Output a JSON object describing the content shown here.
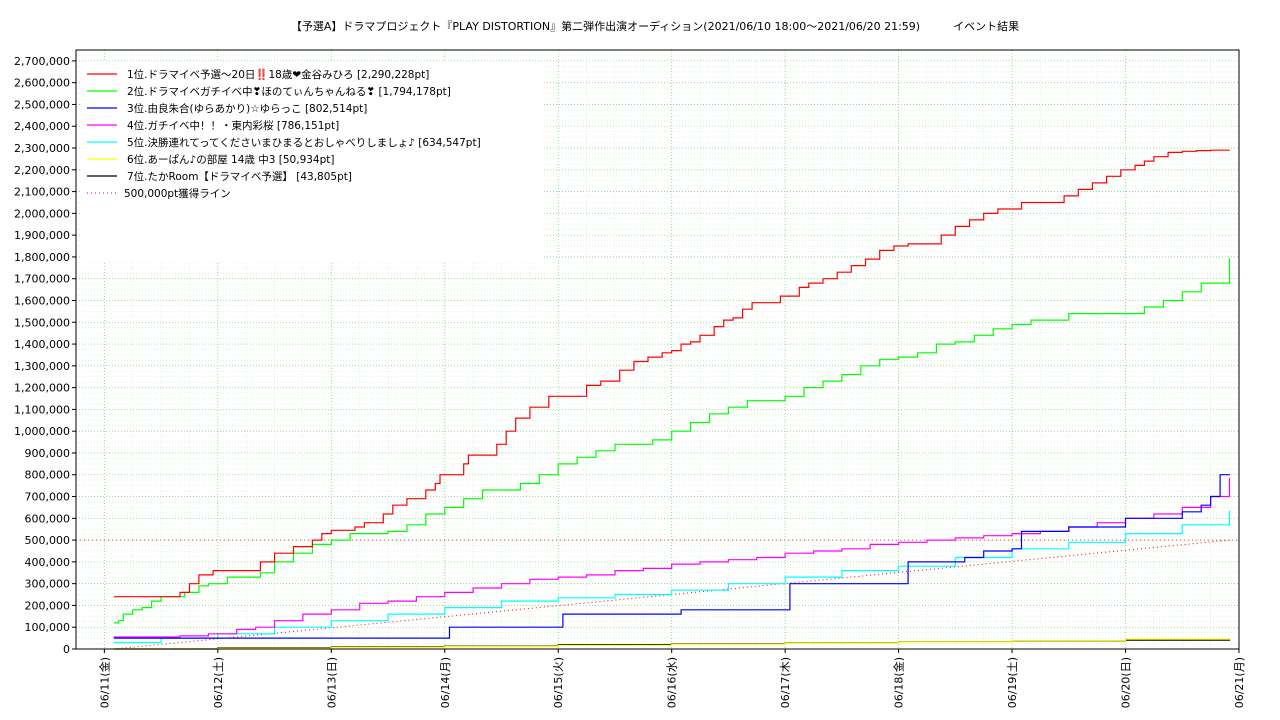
{
  "chart_data": {
    "type": "line",
    "title": "【予選A】ドラマプロジェクト『PLAY DISTORTION』第二弾作出演オーディション(2021/06/10 18:00〜2021/06/20 21:59)　　　イベント結果",
    "xlabel": "",
    "ylabel": "",
    "ylim": [
      0,
      2750000
    ],
    "yticks": [
      0,
      100000,
      200000,
      300000,
      400000,
      500000,
      600000,
      700000,
      800000,
      900000,
      1000000,
      1100000,
      1200000,
      1300000,
      1400000,
      1500000,
      1600000,
      1700000,
      1800000,
      1900000,
      2000000,
      2100000,
      2200000,
      2300000,
      2400000,
      2500000,
      2600000,
      2700000
    ],
    "ytick_labels": [
      "0",
      "100,000",
      "200,000",
      "300,000",
      "400,000",
      "500,000",
      "600,000",
      "700,000",
      "800,000",
      "900,000",
      "1,000,000",
      "1,100,000",
      "1,200,000",
      "1,300,000",
      "1,400,000",
      "1,500,000",
      "1,600,000",
      "1,700,000",
      "1,800,000",
      "1,900,000",
      "2,000,000",
      "2,100,000",
      "2,200,000",
      "2,300,000",
      "2,400,000",
      "2,500,000",
      "2,600,000",
      "2,700,000"
    ],
    "xlim": [
      "2021-06-10 18:00",
      "2021-06-21 00:00"
    ],
    "xticks": [
      "2021-06-11 00:00",
      "2021-06-12 00:00",
      "2021-06-13 00:00",
      "2021-06-14 00:00",
      "2021-06-15 00:00",
      "2021-06-16 00:00",
      "2021-06-17 00:00",
      "2021-06-18 00:00",
      "2021-06-19 00:00",
      "2021-06-20 00:00",
      "2021-06-21 00:00"
    ],
    "xtick_labels": [
      "06/11(金)",
      "06/12(土)",
      "06/13(日)",
      "06/14(月)",
      "06/15(火)",
      "06/16(水)",
      "06/17(木)",
      "06/18(金)",
      "06/19(土)",
      "06/20(日)",
      "06/21(月)"
    ],
    "grid": true,
    "legend_position": "top-left",
    "series": [
      {
        "name": "1位.ドラマイベ予選〜20日‼️18歳❤金谷みひろ [2,290,228pt]",
        "color": "#ff0000",
        "x": [
          "2021-06-11 02:00",
          "2021-06-11 07:00",
          "2021-06-11 08:00",
          "2021-06-11 09:00",
          "2021-06-11 11:00",
          "2021-06-11 14:00",
          "2021-06-11 16:00",
          "2021-06-11 18:00",
          "2021-06-11 20:00",
          "2021-06-11 23:00",
          "2021-06-12 03:00",
          "2021-06-12 06:00",
          "2021-06-12 09:00",
          "2021-06-12 12:00",
          "2021-06-12 16:00",
          "2021-06-12 20:00",
          "2021-06-12 22:00",
          "2021-06-13 00:00",
          "2021-06-13 05:00",
          "2021-06-13 07:00",
          "2021-06-13 09:00",
          "2021-06-13 11:00",
          "2021-06-13 13:00",
          "2021-06-13 16:00",
          "2021-06-13 20:00",
          "2021-06-13 22:00",
          "2021-06-13 23:00",
          "2021-06-14 04:00",
          "2021-06-14 05:00",
          "2021-06-14 06:00",
          "2021-06-14 09:00",
          "2021-06-14 11:00",
          "2021-06-14 13:00",
          "2021-06-14 15:00",
          "2021-06-14 18:00",
          "2021-06-14 22:00",
          "2021-06-15 02:00",
          "2021-06-15 04:00",
          "2021-06-15 06:00",
          "2021-06-15 09:00",
          "2021-06-15 11:00",
          "2021-06-15 13:00",
          "2021-06-15 16:00",
          "2021-06-15 19:00",
          "2021-06-15 22:00",
          "2021-06-16 00:00",
          "2021-06-16 02:00",
          "2021-06-16 04:00",
          "2021-06-16 06:00",
          "2021-06-16 09:00",
          "2021-06-16 11:00",
          "2021-06-16 13:00",
          "2021-06-16 15:00",
          "2021-06-16 17:00",
          "2021-06-16 20:00",
          "2021-06-16 23:00",
          "2021-06-17 03:00",
          "2021-06-17 05:00",
          "2021-06-17 08:00",
          "2021-06-17 11:00",
          "2021-06-17 14:00",
          "2021-06-17 17:00",
          "2021-06-17 20:00",
          "2021-06-17 23:00",
          "2021-06-18 02:00",
          "2021-06-18 06:00",
          "2021-06-18 09:00",
          "2021-06-18 12:00",
          "2021-06-18 15:00",
          "2021-06-18 18:00",
          "2021-06-18 21:00",
          "2021-06-19 02:00",
          "2021-06-19 05:00",
          "2021-06-19 08:00",
          "2021-06-19 11:00",
          "2021-06-19 14:00",
          "2021-06-19 17:00",
          "2021-06-19 20:00",
          "2021-06-19 23:00",
          "2021-06-20 02:00",
          "2021-06-20 04:00",
          "2021-06-20 06:00",
          "2021-06-20 09:00",
          "2021-06-20 12:00",
          "2021-06-20 15:00",
          "2021-06-20 18:00",
          "2021-06-20 21:59"
        ],
        "y": [
          240000,
          240000,
          240000,
          240000,
          240000,
          240000,
          260000,
          300000,
          340000,
          360000,
          360000,
          360000,
          400000,
          440000,
          470000,
          500000,
          530000,
          545000,
          560000,
          580000,
          580000,
          620000,
          660000,
          690000,
          730000,
          760000,
          800000,
          850000,
          890000,
          890000,
          890000,
          940000,
          1000000,
          1060000,
          1110000,
          1160000,
          1160000,
          1160000,
          1210000,
          1230000,
          1230000,
          1280000,
          1320000,
          1340000,
          1360000,
          1370000,
          1400000,
          1410000,
          1440000,
          1480000,
          1510000,
          1520000,
          1560000,
          1590000,
          1590000,
          1620000,
          1660000,
          1680000,
          1700000,
          1730000,
          1760000,
          1790000,
          1830000,
          1850000,
          1860000,
          1860000,
          1900000,
          1940000,
          1970000,
          2000000,
          2020000,
          2050000,
          2050000,
          2050000,
          2080000,
          2110000,
          2140000,
          2170000,
          2200000,
          2220000,
          2240000,
          2260000,
          2280000,
          2285000,
          2288000,
          2290000,
          2290228
        ]
      },
      {
        "name": "2位.ドラマイベガチイベ中❣ほのてぃんちゃんねる❣ [1,794,178pt]",
        "color": "#00ff00",
        "x": [
          "2021-06-11 02:00",
          "2021-06-11 03:00",
          "2021-06-11 04:00",
          "2021-06-11 06:00",
          "2021-06-11 08:00",
          "2021-06-11 10:00",
          "2021-06-11 12:00",
          "2021-06-11 15:00",
          "2021-06-11 17:00",
          "2021-06-11 20:00",
          "2021-06-11 22:00",
          "2021-06-12 02:00",
          "2021-06-12 06:00",
          "2021-06-12 09:00",
          "2021-06-12 12:00",
          "2021-06-12 16:00",
          "2021-06-12 20:00",
          "2021-06-13 00:00",
          "2021-06-13 04:00",
          "2021-06-13 08:00",
          "2021-06-13 12:00",
          "2021-06-13 16:00",
          "2021-06-13 20:00",
          "2021-06-14 00:00",
          "2021-06-14 04:00",
          "2021-06-14 08:00",
          "2021-06-14 12:00",
          "2021-06-14 16:00",
          "2021-06-14 20:00",
          "2021-06-15 00:00",
          "2021-06-15 04:00",
          "2021-06-15 08:00",
          "2021-06-15 12:00",
          "2021-06-15 16:00",
          "2021-06-15 20:00",
          "2021-06-16 00:00",
          "2021-06-16 04:00",
          "2021-06-16 08:00",
          "2021-06-16 12:00",
          "2021-06-16 16:00",
          "2021-06-16 20:00",
          "2021-06-17 00:00",
          "2021-06-17 04:00",
          "2021-06-17 08:00",
          "2021-06-17 12:00",
          "2021-06-17 16:00",
          "2021-06-17 20:00",
          "2021-06-18 00:00",
          "2021-06-18 04:00",
          "2021-06-18 08:00",
          "2021-06-18 12:00",
          "2021-06-18 16:00",
          "2021-06-18 20:00",
          "2021-06-19 00:00",
          "2021-06-19 04:00",
          "2021-06-19 08:00",
          "2021-06-19 12:00",
          "2021-06-19 16:00",
          "2021-06-19 20:00",
          "2021-06-20 00:00",
          "2021-06-20 04:00",
          "2021-06-20 08:00",
          "2021-06-20 12:00",
          "2021-06-20 16:00",
          "2021-06-20 21:59"
        ],
        "y": [
          120000,
          130000,
          160000,
          180000,
          190000,
          220000,
          240000,
          240000,
          260000,
          290000,
          300000,
          330000,
          330000,
          350000,
          400000,
          440000,
          480000,
          500000,
          530000,
          530000,
          540000,
          570000,
          620000,
          650000,
          690000,
          730000,
          730000,
          760000,
          800000,
          850000,
          880000,
          910000,
          940000,
          940000,
          960000,
          1000000,
          1040000,
          1080000,
          1110000,
          1140000,
          1140000,
          1160000,
          1200000,
          1230000,
          1260000,
          1300000,
          1330000,
          1340000,
          1360000,
          1400000,
          1410000,
          1440000,
          1470000,
          1490000,
          1510000,
          1510000,
          1540000,
          1540000,
          1540000,
          1540000,
          1570000,
          1600000,
          1640000,
          1680000,
          1794178
        ]
      },
      {
        "name": "3位.由良朱合(ゆらあかり)☆ゆらっこ [802,514pt]",
        "color": "#0000ff",
        "x": [
          "2021-06-11 02:00",
          "2021-06-11 06:00",
          "2021-06-12 00:00",
          "2021-06-12 12:00",
          "2021-06-13 00:00",
          "2021-06-13 12:00",
          "2021-06-14 00:00",
          "2021-06-14 01:00",
          "2021-06-14 12:00",
          "2021-06-15 00:00",
          "2021-06-15 01:00",
          "2021-06-15 12:00",
          "2021-06-16 00:00",
          "2021-06-16 02:00",
          "2021-06-16 12:00",
          "2021-06-17 00:00",
          "2021-06-17 01:00",
          "2021-06-17 12:00",
          "2021-06-18 00:00",
          "2021-06-18 02:00",
          "2021-06-18 12:00",
          "2021-06-18 14:00",
          "2021-06-18 18:00",
          "2021-06-19 00:00",
          "2021-06-19 02:00",
          "2021-06-19 12:00",
          "2021-06-20 00:00",
          "2021-06-20 12:00",
          "2021-06-20 16:00",
          "2021-06-20 18:00",
          "2021-06-20 20:00",
          "2021-06-20 21:59"
        ],
        "y": [
          50000,
          50000,
          50000,
          50000,
          50000,
          50000,
          50000,
          100000,
          100000,
          100000,
          160000,
          160000,
          160000,
          180000,
          180000,
          180000,
          300000,
          300000,
          300000,
          400000,
          400000,
          420000,
          450000,
          460000,
          540000,
          560000,
          600000,
          630000,
          660000,
          700000,
          800000,
          802514
        ]
      },
      {
        "name": "4位.ガチイベ中！！・東内彩桜 [786,151pt]",
        "color": "#ff00ff",
        "x": [
          "2021-06-11 02:00",
          "2021-06-11 08:00",
          "2021-06-11 16:00",
          "2021-06-11 22:00",
          "2021-06-12 04:00",
          "2021-06-12 08:00",
          "2021-06-12 12:00",
          "2021-06-12 18:00",
          "2021-06-13 00:00",
          "2021-06-13 06:00",
          "2021-06-13 12:00",
          "2021-06-13 18:00",
          "2021-06-14 00:00",
          "2021-06-14 06:00",
          "2021-06-14 12:00",
          "2021-06-14 18:00",
          "2021-06-15 00:00",
          "2021-06-15 06:00",
          "2021-06-15 12:00",
          "2021-06-15 18:00",
          "2021-06-16 00:00",
          "2021-06-16 06:00",
          "2021-06-16 12:00",
          "2021-06-16 18:00",
          "2021-06-17 00:00",
          "2021-06-17 06:00",
          "2021-06-17 12:00",
          "2021-06-17 18:00",
          "2021-06-18 00:00",
          "2021-06-18 06:00",
          "2021-06-18 12:00",
          "2021-06-18 18:00",
          "2021-06-19 00:00",
          "2021-06-19 06:00",
          "2021-06-19 12:00",
          "2021-06-19 18:00",
          "2021-06-20 00:00",
          "2021-06-20 06:00",
          "2021-06-20 12:00",
          "2021-06-20 18:00",
          "2021-06-20 21:59"
        ],
        "y": [
          55000,
          55000,
          60000,
          70000,
          90000,
          100000,
          130000,
          160000,
          180000,
          210000,
          220000,
          240000,
          260000,
          280000,
          300000,
          320000,
          330000,
          340000,
          360000,
          370000,
          390000,
          400000,
          410000,
          420000,
          440000,
          450000,
          460000,
          480000,
          490000,
          500000,
          510000,
          520000,
          530000,
          540000,
          560000,
          580000,
          600000,
          620000,
          650000,
          700000,
          786151
        ]
      },
      {
        "name": "5位.決勝連れてってくださいまひまるとおしゃべりしましょ♪ [634,547pt]",
        "color": "#00ffff",
        "x": [
          "2021-06-11 02:00",
          "2021-06-11 12:00",
          "2021-06-12 00:00",
          "2021-06-12 12:00",
          "2021-06-13 00:00",
          "2021-06-13 12:00",
          "2021-06-14 00:00",
          "2021-06-14 12:00",
          "2021-06-15 00:00",
          "2021-06-15 12:00",
          "2021-06-16 00:00",
          "2021-06-16 12:00",
          "2021-06-17 00:00",
          "2021-06-17 12:00",
          "2021-06-18 00:00",
          "2021-06-18 12:00",
          "2021-06-19 00:00",
          "2021-06-19 12:00",
          "2021-06-20 00:00",
          "2021-06-20 12:00",
          "2021-06-20 21:59"
        ],
        "y": [
          30000,
          50000,
          70000,
          100000,
          130000,
          160000,
          190000,
          220000,
          235000,
          250000,
          270000,
          300000,
          330000,
          360000,
          380000,
          420000,
          460000,
          490000,
          530000,
          570000,
          634547
        ]
      },
      {
        "name": "6位.あーぱん♪の部屋 14歳 中3 [50,934pt]",
        "color": "#ffff00",
        "x": [
          "2021-06-11 02:00",
          "2021-06-12 00:00",
          "2021-06-13 00:00",
          "2021-06-14 00:00",
          "2021-06-15 00:00",
          "2021-06-16 00:00",
          "2021-06-17 00:00",
          "2021-06-18 00:00",
          "2021-06-19 00:00",
          "2021-06-20 00:00",
          "2021-06-20 21:59"
        ],
        "y": [
          0,
          3000,
          8000,
          12000,
          17000,
          22000,
          27000,
          32000,
          38000,
          45000,
          50934
        ]
      },
      {
        "name": "7位.たかRoom【ドラマイベ予選】 [43,805pt]",
        "color": "#000000",
        "x": [
          "2021-06-11 02:00",
          "2021-06-12 00:00",
          "2021-06-13 00:00",
          "2021-06-14 00:00",
          "2021-06-15 00:00",
          "2021-06-16 00:00",
          "2021-06-17 00:00",
          "2021-06-18 00:00",
          "2021-06-19 00:00",
          "2021-06-20 00:00",
          "2021-06-20 21:59"
        ],
        "y": [
          0,
          5000,
          10000,
          14000,
          20000,
          24000,
          28000,
          33000,
          37000,
          41000,
          43805
        ]
      }
    ],
    "reference_line": {
      "name": "500,000pt獲得ライン",
      "color": "#ff0000",
      "x": [
        "2021-06-11 02:00",
        "2021-06-20 21:59"
      ],
      "y": [
        0,
        500000
      ]
    }
  }
}
